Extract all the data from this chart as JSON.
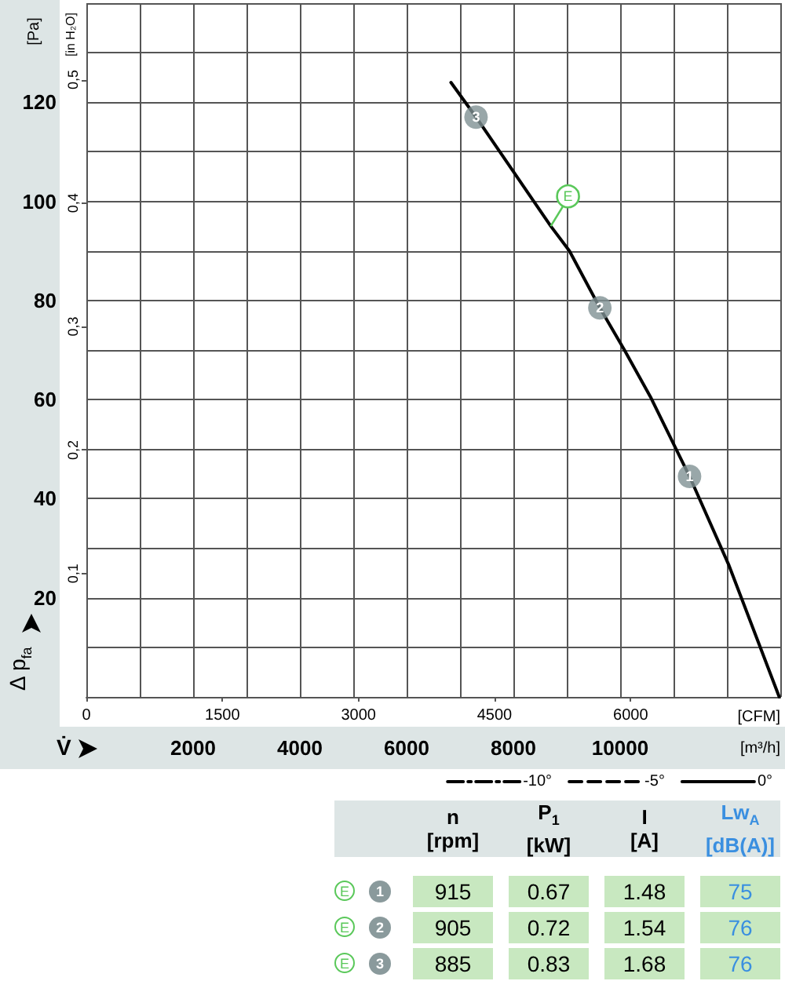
{
  "chart_data": [
    {
      "type": "line",
      "xlabel": "[m³/h]",
      "x2label": "[CFM]",
      "ylabel": "[Pa]",
      "y2label": "[in H₂O]",
      "annotations": [
        "Δ p$_{fa}$",
        "V̇",
        {
          "text": "E",
          "x": 8700,
          "y": 95
        },
        {
          "text": "1",
          "x": 11300,
          "y": 44.5
        },
        {
          "text": "2",
          "x": 9620,
          "y": 78.5
        },
        {
          "text": "3",
          "x": 7300,
          "y": 117
        }
      ],
      "x": [
        6830,
        7300,
        8000,
        8700,
        9050,
        9620,
        10080,
        10570,
        11300,
        12040,
        12980
      ],
      "series": [
        {
          "name": "-10°",
          "color": "#000000",
          "line_style": "dashdot",
          "values": [
            null,
            null,
            null,
            null,
            null,
            null,
            null,
            null,
            null,
            null,
            null
          ]
        },
        {
          "name": "-5°",
          "color": "#000000",
          "line_style": "dashed",
          "values": [
            null,
            null,
            null,
            null,
            null,
            null,
            null,
            null,
            null,
            null,
            null
          ]
        },
        {
          "name": "0°",
          "color": "#000000",
          "line_style": "solid",
          "values": [
            124,
            117,
            106,
            95,
            90,
            78.5,
            70,
            60.5,
            44.5,
            26.5,
            0
          ]
        },
        {
          "type": "scatter",
          "color": "#7f9194",
          "marker": "circle",
          "x": [
            11300,
            9620,
            7300
          ],
          "values": [
            44.5,
            78.5,
            117
          ]
        }
      ],
      "xlim": [
        0,
        13000
      ],
      "xticks": [
        {
          "value": 0,
          "label": null
        },
        {
          "value": 1000,
          "label": null
        },
        2000,
        {
          "value": 3000,
          "label": null
        },
        4000,
        {
          "value": 5000,
          "label": null
        },
        6000,
        {
          "value": 7000,
          "label": null
        },
        8000,
        {
          "value": 9000,
          "label": null
        },
        10000,
        {
          "value": 11000,
          "label": null
        },
        {
          "value": 12000,
          "label": null
        },
        {
          "value": 13000,
          "label": null
        }
      ],
      "x2lim": [
        0,
        7650
      ],
      "x2ticks": [
        0,
        1500,
        3000,
        4500,
        6000
      ],
      "ylim": [
        0,
        140
      ],
      "yticks": [
        {
          "value": 0,
          "label": null
        },
        {
          "value": 10,
          "label": null
        },
        20,
        {
          "value": 30,
          "label": null
        },
        40,
        {
          "value": 50,
          "label": null
        },
        60,
        {
          "value": 70,
          "label": null
        },
        80,
        {
          "value": 90,
          "label": null
        },
        100,
        {
          "value": 110,
          "label": null
        },
        120,
        {
          "value": 130,
          "label": null
        },
        {
          "value": 140,
          "label": null
        }
      ],
      "y2lim": [
        0,
        0.562
      ],
      "y2ticks": [
        {
          "value": 0.1,
          "label": "0,1"
        },
        {
          "value": 0.2,
          "label": "0,2"
        },
        {
          "value": 0.3,
          "label": "0,3"
        },
        {
          "value": 0.4,
          "label": "0,4"
        },
        {
          "value": 0.5,
          "label": "0,5"
        }
      ],
      "grid": true,
      "legend": "bottom right"
    },
    {
      "type": "other",
      "annotations": [
        "n\n[rpm]",
        "P$_{1}$\n[kW]",
        "I\n[A]",
        "Lw$_{A}$\n[dB(A)]",
        "E",
        "1",
        "915",
        "0.67",
        "1.48",
        "75",
        "E",
        "2",
        "905",
        "0.72",
        "1.54",
        "76",
        "E",
        "3",
        "885",
        "0.83",
        "1.68",
        "76"
      ]
    }
  ]
}
